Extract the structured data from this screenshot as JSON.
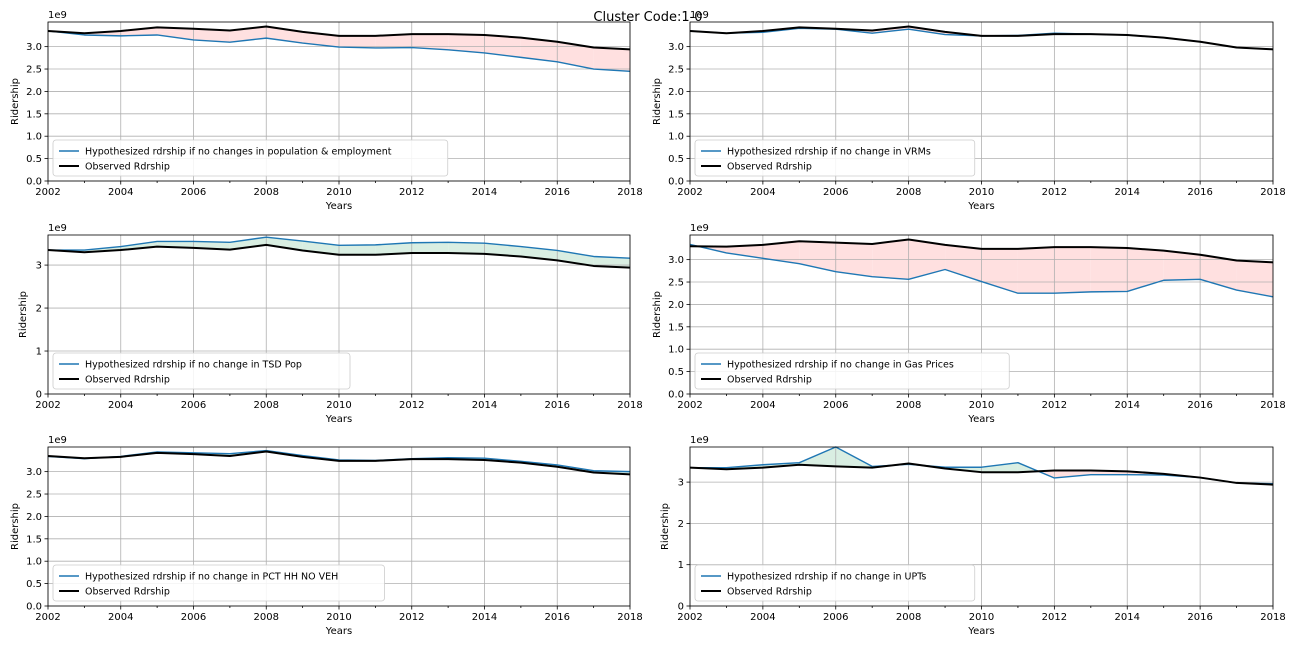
{
  "figure": {
    "title": "Cluster Code:1-0"
  },
  "chart_data": [
    {
      "type": "line",
      "title": "",
      "xlabel": "Years",
      "ylabel": "Ridership",
      "ymultiplier": "1e9",
      "x": [
        2002,
        2003,
        2004,
        2005,
        2006,
        2007,
        2008,
        2009,
        2010,
        2011,
        2012,
        2013,
        2014,
        2015,
        2016,
        2017,
        2018
      ],
      "xticks": [
        2002,
        2004,
        2006,
        2008,
        2010,
        2012,
        2014,
        2016,
        2018
      ],
      "ylim": [
        0,
        3.55
      ],
      "yticks": [
        0.0,
        0.5,
        1.0,
        1.5,
        2.0,
        2.5,
        3.0
      ],
      "ytick_labels": [
        "0.0",
        "0.5",
        "1.0",
        "1.5",
        "2.0",
        "2.5",
        "3.0"
      ],
      "grid": true,
      "legend_position": "lower-left",
      "series": [
        {
          "name": "Hypothesized rdrship if no changes in population & employment",
          "color": "#1f77b4",
          "values": [
            3.35,
            3.26,
            3.24,
            3.26,
            3.15,
            3.1,
            3.19,
            3.08,
            2.99,
            2.97,
            2.98,
            2.93,
            2.86,
            2.76,
            2.66,
            2.5,
            2.45
          ]
        },
        {
          "name": "Observed Rdrship",
          "color": "#000000",
          "values": [
            3.35,
            3.3,
            3.35,
            3.43,
            3.4,
            3.36,
            3.45,
            3.33,
            3.24,
            3.24,
            3.28,
            3.28,
            3.26,
            3.2,
            3.11,
            2.98,
            2.94
          ]
        }
      ],
      "fill_colors": {
        "above": "#d9eee2",
        "below": "#ffe0e0"
      }
    },
    {
      "type": "line",
      "title": "",
      "xlabel": "Years",
      "ylabel": "Ridership",
      "ymultiplier": "1e9",
      "x": [
        2002,
        2003,
        2004,
        2005,
        2006,
        2007,
        2008,
        2009,
        2010,
        2011,
        2012,
        2013,
        2014,
        2015,
        2016,
        2017,
        2018
      ],
      "xticks": [
        2002,
        2004,
        2006,
        2008,
        2010,
        2012,
        2014,
        2016,
        2018
      ],
      "ylim": [
        0,
        3.55
      ],
      "yticks": [
        0.0,
        0.5,
        1.0,
        1.5,
        2.0,
        2.5,
        3.0
      ],
      "ytick_labels": [
        "0.0",
        "0.5",
        "1.0",
        "1.5",
        "2.0",
        "2.5",
        "3.0"
      ],
      "grid": true,
      "legend_position": "lower-left",
      "series": [
        {
          "name": "Hypothesized rdrship if no change in VRMs",
          "color": "#1f77b4",
          "values": [
            3.35,
            3.3,
            3.32,
            3.41,
            3.39,
            3.3,
            3.39,
            3.27,
            3.24,
            3.25,
            3.3,
            3.28,
            3.26,
            3.2,
            3.11,
            2.98,
            2.94
          ]
        },
        {
          "name": "Observed Rdrship",
          "color": "#000000",
          "values": [
            3.35,
            3.3,
            3.35,
            3.43,
            3.4,
            3.36,
            3.45,
            3.33,
            3.24,
            3.24,
            3.28,
            3.28,
            3.26,
            3.2,
            3.11,
            2.98,
            2.94
          ]
        }
      ],
      "fill_colors": {
        "above": "#d9eee2",
        "below": "#ffe0e0"
      }
    },
    {
      "type": "line",
      "title": "",
      "xlabel": "Years",
      "ylabel": "Ridership",
      "ymultiplier": "1e9",
      "x": [
        2002,
        2003,
        2004,
        2005,
        2006,
        2007,
        2008,
        2009,
        2010,
        2011,
        2012,
        2013,
        2014,
        2015,
        2016,
        2017,
        2018
      ],
      "xticks": [
        2002,
        2004,
        2006,
        2008,
        2010,
        2012,
        2014,
        2016,
        2018
      ],
      "ylim": [
        0,
        3.7
      ],
      "yticks": [
        0,
        1,
        2,
        3
      ],
      "ytick_labels": [
        "0",
        "1",
        "2",
        "3"
      ],
      "grid": true,
      "legend_position": "lower-left",
      "series": [
        {
          "name": "Hypothesized rdrship if no change in TSD Pop",
          "color": "#1f77b4",
          "values": [
            3.35,
            3.35,
            3.43,
            3.55,
            3.55,
            3.53,
            3.65,
            3.56,
            3.46,
            3.47,
            3.52,
            3.53,
            3.51,
            3.43,
            3.34,
            3.2,
            3.16
          ]
        },
        {
          "name": "Observed Rdrship",
          "color": "#000000",
          "values": [
            3.35,
            3.3,
            3.35,
            3.43,
            3.4,
            3.36,
            3.47,
            3.34,
            3.24,
            3.24,
            3.28,
            3.28,
            3.26,
            3.2,
            3.11,
            2.98,
            2.94
          ]
        }
      ],
      "fill_colors": {
        "above": "#d9eee2",
        "below": "#ffe0e0"
      }
    },
    {
      "type": "line",
      "title": "",
      "xlabel": "Years",
      "ylabel": "Ridership",
      "ymultiplier": "1e9",
      "x": [
        2002,
        2003,
        2004,
        2005,
        2006,
        2007,
        2008,
        2009,
        2010,
        2011,
        2012,
        2013,
        2014,
        2015,
        2016,
        2017,
        2018
      ],
      "xticks": [
        2002,
        2004,
        2006,
        2008,
        2010,
        2012,
        2014,
        2016,
        2018
      ],
      "ylim": [
        0,
        3.55
      ],
      "yticks": [
        0.0,
        0.5,
        1.0,
        1.5,
        2.0,
        2.5,
        3.0
      ],
      "ytick_labels": [
        "0.0",
        "0.5",
        "1.0",
        "1.5",
        "2.0",
        "2.5",
        "3.0"
      ],
      "grid": true,
      "legend_position": "lower-left",
      "series": [
        {
          "name": "Hypothesized rdrship if no change in Gas Prices",
          "color": "#1f77b4",
          "values": [
            3.34,
            3.15,
            3.03,
            2.91,
            2.73,
            2.62,
            2.56,
            2.78,
            2.51,
            2.25,
            2.25,
            2.28,
            2.29,
            2.54,
            2.56,
            2.32,
            2.17
          ]
        },
        {
          "name": "Observed Rdrship",
          "color": "#000000",
          "values": [
            3.3,
            3.29,
            3.33,
            3.41,
            3.38,
            3.35,
            3.45,
            3.33,
            3.24,
            3.24,
            3.28,
            3.28,
            3.26,
            3.2,
            3.11,
            2.98,
            2.94
          ]
        }
      ],
      "fill_colors": {
        "above": "#d9eee2",
        "below": "#ffe0e0"
      }
    },
    {
      "type": "line",
      "title": "",
      "xlabel": "Years",
      "ylabel": "Ridership",
      "ymultiplier": "1e9",
      "x": [
        2002,
        2003,
        2004,
        2005,
        2006,
        2007,
        2008,
        2009,
        2010,
        2011,
        2012,
        2013,
        2014,
        2015,
        2016,
        2017,
        2018
      ],
      "xticks": [
        2002,
        2004,
        2006,
        2008,
        2010,
        2012,
        2014,
        2016,
        2018
      ],
      "ylim": [
        0,
        3.55
      ],
      "yticks": [
        0.0,
        0.5,
        1.0,
        1.5,
        2.0,
        2.5,
        3.0
      ],
      "ytick_labels": [
        "0.0",
        "0.5",
        "1.0",
        "1.5",
        "2.0",
        "2.5",
        "3.0"
      ],
      "grid": true,
      "legend_position": "lower-left",
      "series": [
        {
          "name": "Hypothesized rdrship if no change in PCT HH NO VEH",
          "color": "#1f77b4",
          "values": [
            3.34,
            3.29,
            3.34,
            3.44,
            3.42,
            3.4,
            3.47,
            3.36,
            3.26,
            3.25,
            3.29,
            3.31,
            3.3,
            3.23,
            3.15,
            3.02,
            3.0
          ]
        },
        {
          "name": "Observed Rdrship",
          "color": "#000000",
          "values": [
            3.35,
            3.3,
            3.33,
            3.42,
            3.39,
            3.35,
            3.45,
            3.33,
            3.24,
            3.24,
            3.28,
            3.28,
            3.26,
            3.2,
            3.11,
            2.98,
            2.94
          ]
        }
      ],
      "fill_colors": {
        "above": "#d9eee2",
        "below": "#ffe0e0"
      }
    },
    {
      "type": "line",
      "title": "",
      "xlabel": "Years",
      "ylabel": "Ridership",
      "ymultiplier": "1e9",
      "x": [
        2002,
        2003,
        2004,
        2005,
        2006,
        2007,
        2008,
        2009,
        2010,
        2011,
        2012,
        2013,
        2014,
        2015,
        2016,
        2017,
        2018
      ],
      "xticks": [
        2002,
        2004,
        2006,
        2008,
        2010,
        2012,
        2014,
        2016,
        2018
      ],
      "ylim": [
        0,
        3.85
      ],
      "yticks": [
        0,
        1,
        2,
        3
      ],
      "ytick_labels": [
        "0",
        "1",
        "2",
        "3"
      ],
      "grid": true,
      "legend_position": "lower-left",
      "series": [
        {
          "name": "Hypothesized rdrship if no change in UPTs",
          "color": "#1f77b4",
          "values": [
            3.35,
            3.35,
            3.42,
            3.47,
            3.85,
            3.38,
            3.43,
            3.36,
            3.36,
            3.47,
            3.1,
            3.18,
            3.18,
            3.17,
            3.11,
            2.98,
            2.96
          ]
        },
        {
          "name": "Observed Rdrship",
          "color": "#000000",
          "values": [
            3.35,
            3.31,
            3.35,
            3.42,
            3.38,
            3.35,
            3.45,
            3.33,
            3.24,
            3.24,
            3.28,
            3.28,
            3.26,
            3.2,
            3.11,
            2.98,
            2.94
          ]
        }
      ],
      "fill_colors": {
        "above": "#d9eee2",
        "below": "#ffe0e0"
      }
    }
  ]
}
